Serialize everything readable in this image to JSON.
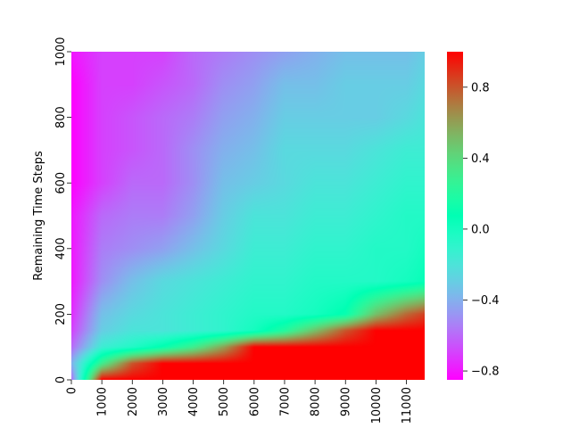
{
  "chart_data": {
    "type": "heatmap",
    "title": "",
    "xlabel": "",
    "ylabel": "Remaining Time Steps",
    "x_range": [
      0,
      11600
    ],
    "y_range": [
      0,
      1000
    ],
    "x_ticks": [
      0,
      1000,
      2000,
      3000,
      4000,
      5000,
      6000,
      7000,
      8000,
      9000,
      10000,
      11000
    ],
    "x_tick_labels": [
      "0",
      "1000",
      "2000",
      "3000",
      "4000",
      "5000",
      "6000",
      "7000",
      "8000",
      "9000",
      "10000",
      "11000"
    ],
    "y_ticks": [
      0,
      200,
      400,
      600,
      800,
      1000
    ],
    "y_tick_labels": [
      "0",
      "200",
      "400",
      "600",
      "800",
      "1000"
    ],
    "colormap": "rainbow",
    "value_range": [
      -0.85,
      1.0
    ],
    "colorbar_ticks": [
      -0.8,
      -0.4,
      0.0,
      0.4,
      0.8
    ],
    "colorbar_tick_labels": [
      "−0.8",
      "−0.4",
      "0.0",
      "0.4",
      "0.8"
    ],
    "grid": false,
    "legend": "colorbar-right",
    "approx_value_grid": {
      "x": [
        0,
        1000,
        2000,
        3000,
        4000,
        5000,
        6000,
        7000,
        8000,
        9000,
        10000,
        11000,
        11600
      ],
      "y": [
        0,
        50,
        100,
        150,
        200,
        300,
        400,
        500,
        600,
        700,
        800,
        900,
        1000
      ],
      "z": [
        [
          -0.6,
          1.0,
          1.0,
          1.0,
          1.0,
          1.0,
          1.0,
          1.0,
          1.0,
          1.0,
          1.0,
          1.0,
          1.0
        ],
        [
          -0.4,
          0.3,
          0.8,
          1.0,
          1.0,
          1.0,
          1.0,
          1.0,
          1.0,
          1.0,
          1.0,
          1.0,
          1.0
        ],
        [
          -0.6,
          -0.15,
          -0.05,
          0.1,
          0.3,
          0.6,
          1.0,
          1.0,
          1.0,
          1.0,
          1.0,
          1.0,
          1.0
        ],
        [
          -0.7,
          -0.3,
          -0.2,
          -0.2,
          -0.15,
          -0.1,
          0.0,
          0.2,
          0.5,
          0.8,
          1.0,
          1.0,
          1.0
        ],
        [
          -0.75,
          -0.35,
          -0.25,
          -0.2,
          -0.15,
          -0.1,
          -0.05,
          -0.05,
          0.0,
          0.1,
          0.5,
          0.75,
          0.85
        ],
        [
          -0.8,
          -0.5,
          -0.35,
          -0.25,
          -0.2,
          -0.15,
          -0.1,
          -0.1,
          -0.05,
          -0.05,
          -0.05,
          0.0,
          0.05
        ],
        [
          -0.8,
          -0.55,
          -0.5,
          -0.45,
          -0.35,
          -0.25,
          -0.15,
          -0.15,
          -0.1,
          -0.1,
          -0.05,
          -0.05,
          0.0
        ],
        [
          -0.8,
          -0.6,
          -0.55,
          -0.55,
          -0.45,
          -0.3,
          -0.2,
          -0.2,
          -0.15,
          -0.15,
          -0.1,
          -0.05,
          -0.05
        ],
        [
          -0.85,
          -0.7,
          -0.6,
          -0.6,
          -0.5,
          -0.35,
          -0.3,
          -0.25,
          -0.2,
          -0.2,
          -0.15,
          -0.1,
          -0.1
        ],
        [
          -0.85,
          -0.7,
          -0.65,
          -0.6,
          -0.5,
          -0.4,
          -0.35,
          -0.25,
          -0.25,
          -0.25,
          -0.2,
          -0.15,
          -0.15
        ],
        [
          -0.85,
          -0.7,
          -0.65,
          -0.6,
          -0.55,
          -0.45,
          -0.4,
          -0.3,
          -0.3,
          -0.3,
          -0.3,
          -0.25,
          -0.2
        ],
        [
          -0.85,
          -0.7,
          -0.7,
          -0.65,
          -0.6,
          -0.5,
          -0.45,
          -0.35,
          -0.35,
          -0.3,
          -0.3,
          -0.3,
          -0.25
        ],
        [
          -0.8,
          -0.7,
          -0.7,
          -0.7,
          -0.6,
          -0.55,
          -0.5,
          -0.45,
          -0.4,
          -0.35,
          -0.35,
          -0.35,
          -0.3
        ]
      ]
    }
  }
}
